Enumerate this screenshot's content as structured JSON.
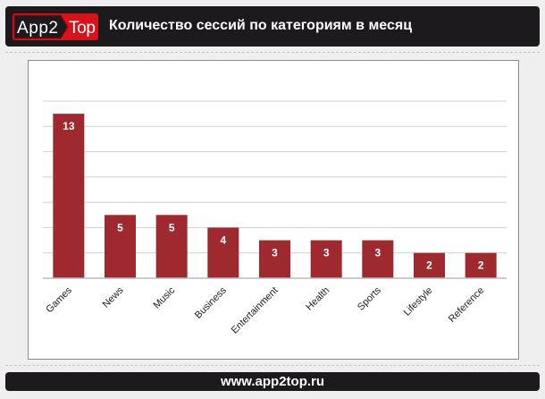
{
  "header": {
    "logo_text": "App2Top",
    "title": "Количество сессий по категориям в месяц"
  },
  "footer": {
    "url": "www.app2top.ru"
  },
  "colors": {
    "bar": "#9e2a2f",
    "header_bg": "#1d1a1e",
    "logo_red": "#d8111b"
  },
  "chart_data": {
    "type": "bar",
    "categories": [
      "Games",
      "News",
      "Music",
      "Business",
      "Entertainment",
      "Health",
      "Sports",
      "Lifestyle",
      "Reference"
    ],
    "values": [
      13,
      5,
      5,
      4,
      3,
      3,
      3,
      2,
      2
    ],
    "title": "",
    "xlabel": "",
    "ylabel": "",
    "ylim": [
      0,
      14
    ],
    "grid": true,
    "grid_step": 2,
    "data_labels": true
  }
}
